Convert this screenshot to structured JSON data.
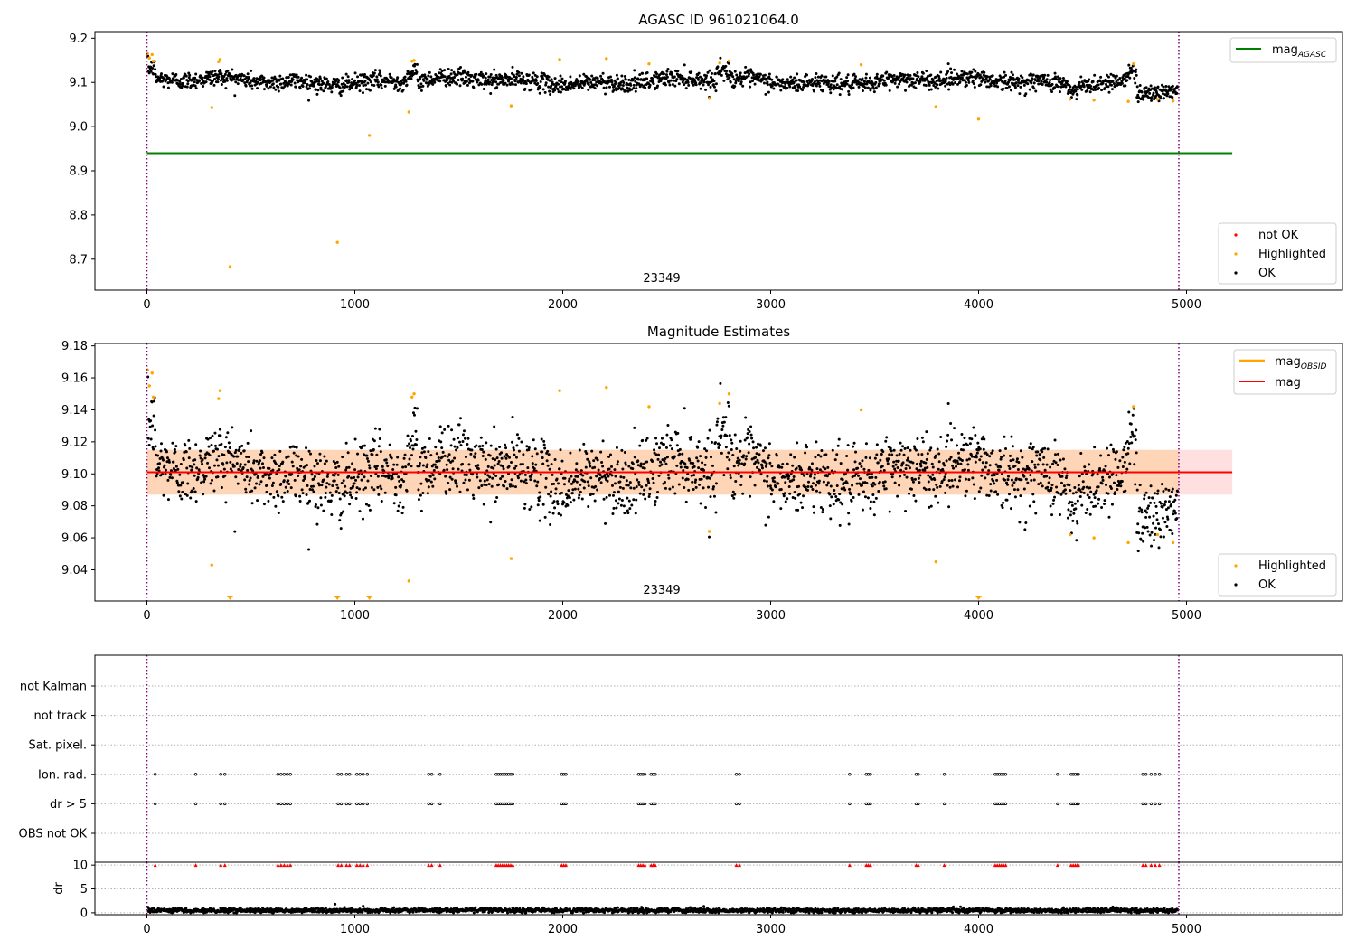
{
  "chart_data": [
    {
      "type": "scatter",
      "title": "AGASC ID 961021064.0",
      "xlim": [
        -250,
        5750
      ],
      "ylim": [
        8.63,
        9.215
      ],
      "xticks": [
        0,
        1000,
        2000,
        3000,
        4000,
        5000
      ],
      "yticks": [
        8.7,
        8.8,
        8.9,
        9.0,
        9.1,
        9.2
      ],
      "ytick_labels": [
        "8.7",
        "8.8",
        "8.9",
        "9.0",
        "9.1",
        "9.2"
      ],
      "grid": false,
      "vlines": [
        0,
        4963
      ],
      "obsid_label": {
        "text": "23349",
        "x": 2480
      },
      "mag_agasc": {
        "value": 8.94,
        "x_range": [
          0,
          5220
        ]
      },
      "ok_points": {
        "x_range": [
          0,
          4963
        ],
        "baseline": 9.103,
        "spread": 0.018
      },
      "highlighted": [
        {
          "x": 3,
          "y": 9.165
        },
        {
          "x": 12,
          "y": 9.155
        },
        {
          "x": 25,
          "y": 9.163
        },
        {
          "x": 31,
          "y": 9.148
        },
        {
          "x": 312,
          "y": 9.043
        },
        {
          "x": 345,
          "y": 9.147
        },
        {
          "x": 352,
          "y": 9.152
        },
        {
          "x": 400,
          "y": 8.683
        },
        {
          "x": 916,
          "y": 8.738
        },
        {
          "x": 1070,
          "y": 8.98
        },
        {
          "x": 1260,
          "y": 9.033
        },
        {
          "x": 1275,
          "y": 9.148
        },
        {
          "x": 1285,
          "y": 9.15
        },
        {
          "x": 1752,
          "y": 9.047
        },
        {
          "x": 1985,
          "y": 9.152
        },
        {
          "x": 2210,
          "y": 9.154
        },
        {
          "x": 2415,
          "y": 9.142
        },
        {
          "x": 2705,
          "y": 9.064
        },
        {
          "x": 2755,
          "y": 9.144
        },
        {
          "x": 2800,
          "y": 9.149
        },
        {
          "x": 3435,
          "y": 9.14
        },
        {
          "x": 3795,
          "y": 9.045
        },
        {
          "x": 4000,
          "y": 9.017
        },
        {
          "x": 4440,
          "y": 9.062
        },
        {
          "x": 4555,
          "y": 9.06
        },
        {
          "x": 4720,
          "y": 9.057
        },
        {
          "x": 4745,
          "y": 9.142
        },
        {
          "x": 4860,
          "y": 9.062
        },
        {
          "x": 4935,
          "y": 9.058
        }
      ],
      "legend_upper": {
        "position": "upper-right",
        "entries": [
          {
            "label": "mag",
            "subscript": "AGASC",
            "color": "#008000"
          }
        ]
      },
      "legend_lower": {
        "position": "lower-right",
        "entries": [
          {
            "label": "not OK",
            "color": "#ff0000"
          },
          {
            "label": "Highlighted",
            "color": "#ffa500"
          },
          {
            "label": "OK",
            "color": "#000000"
          }
        ]
      }
    },
    {
      "type": "scatter",
      "title": "Magnitude Estimates",
      "xlim": [
        -250,
        5750
      ],
      "ylim": [
        9.0205,
        9.1815
      ],
      "xticks": [
        0,
        1000,
        2000,
        3000,
        4000,
        5000
      ],
      "yticks": [
        9.04,
        9.06,
        9.08,
        9.1,
        9.12,
        9.14,
        9.16,
        9.18
      ],
      "ytick_labels": [
        "9.04",
        "9.06",
        "9.08",
        "9.10",
        "9.12",
        "9.14",
        "9.16",
        "9.18"
      ],
      "grid": false,
      "vlines": [
        0,
        4963
      ],
      "obsid_label": {
        "text": "23349",
        "x": 2480
      },
      "mag_line": {
        "value": 9.101,
        "x_range": [
          0,
          5220
        ]
      },
      "mag_band": {
        "low": 9.087,
        "high": 9.115,
        "x_range": [
          0,
          5220
        ]
      },
      "mag_obsid_band": {
        "low": 9.087,
        "high": 9.115,
        "x_range": [
          0,
          4963
        ]
      },
      "ok_points": {
        "x_range": [
          0,
          4963
        ],
        "baseline": 9.101,
        "spread": 0.011
      },
      "highlighted": [
        {
          "x": 3,
          "y": 9.165
        },
        {
          "x": 12,
          "y": 9.155
        },
        {
          "x": 25,
          "y": 9.163
        },
        {
          "x": 31,
          "y": 9.148
        },
        {
          "x": 312,
          "y": 9.043
        },
        {
          "x": 345,
          "y": 9.147
        },
        {
          "x": 352,
          "y": 9.152
        },
        {
          "x": 1260,
          "y": 9.033
        },
        {
          "x": 1275,
          "y": 9.148
        },
        {
          "x": 1285,
          "y": 9.15
        },
        {
          "x": 1752,
          "y": 9.047
        },
        {
          "x": 1985,
          "y": 9.152
        },
        {
          "x": 2210,
          "y": 9.154
        },
        {
          "x": 2415,
          "y": 9.142
        },
        {
          "x": 2705,
          "y": 9.064
        },
        {
          "x": 2755,
          "y": 9.144
        },
        {
          "x": 2800,
          "y": 9.15
        },
        {
          "x": 3435,
          "y": 9.14
        },
        {
          "x": 3795,
          "y": 9.045
        },
        {
          "x": 4440,
          "y": 9.062
        },
        {
          "x": 4555,
          "y": 9.06
        },
        {
          "x": 4720,
          "y": 9.057
        },
        {
          "x": 4745,
          "y": 9.142
        },
        {
          "x": 4860,
          "y": 9.062
        },
        {
          "x": 4935,
          "y": 9.057
        }
      ],
      "out_of_range_below": [
        400,
        916,
        1070,
        4000
      ],
      "legend_upper": {
        "position": "upper-right",
        "entries": [
          {
            "label": "mag",
            "subscript": "OBSID",
            "color": "#ffa500"
          },
          {
            "label": "mag",
            "subscript": "",
            "color": "#ff0000"
          }
        ]
      },
      "legend_lower": {
        "position": "lower-right",
        "entries": [
          {
            "label": "Highlighted",
            "color": "#ffa500"
          },
          {
            "label": "OK",
            "color": "#000000"
          }
        ]
      }
    },
    {
      "type": "scatter",
      "title": "",
      "xlim": [
        -250,
        5750
      ],
      "xticks": [
        0,
        1000,
        2000,
        3000,
        4000,
        5000
      ],
      "vlines": [
        0,
        4963
      ],
      "flags": [
        "not Kalman",
        "not track",
        "Sat. pixel.",
        "Ion. rad.",
        "dr > 5",
        "OBS not OK"
      ],
      "flag_times": [
        40,
        235,
        355,
        375,
        630,
        645,
        660,
        675,
        690,
        920,
        935,
        960,
        975,
        1010,
        1025,
        1040,
        1060,
        1355,
        1370,
        1410,
        1680,
        1690,
        1700,
        1710,
        1720,
        1730,
        1740,
        1750,
        1760,
        1995,
        2005,
        2015,
        2365,
        2375,
        2385,
        2395,
        2425,
        2435,
        2445,
        2835,
        2850,
        3380,
        3460,
        3470,
        3480,
        3700,
        3710,
        3835,
        4080,
        4090,
        4100,
        4110,
        4120,
        4130,
        4380,
        4445,
        4455,
        4465,
        4475,
        4480,
        4790,
        4805,
        4830,
        4850,
        4870
      ]
    },
    {
      "type": "scatter",
      "ylabel": "dr",
      "xlim": [
        -250,
        5750
      ],
      "ylim": [
        -0.4,
        10.6
      ],
      "xticks": [
        0,
        1000,
        2000,
        3000,
        4000,
        5000
      ],
      "yticks": [
        0,
        5,
        10
      ],
      "ytick_labels": [
        "0",
        "5",
        "10"
      ],
      "grid": true,
      "vlines": [
        0,
        4963
      ],
      "dr_baseline": 0.5,
      "dr_clipped_value": 10,
      "dr_outliers": [
        {
          "x": 905,
          "y": 1.8
        },
        {
          "x": 1040,
          "y": 1.4
        }
      ]
    }
  ]
}
